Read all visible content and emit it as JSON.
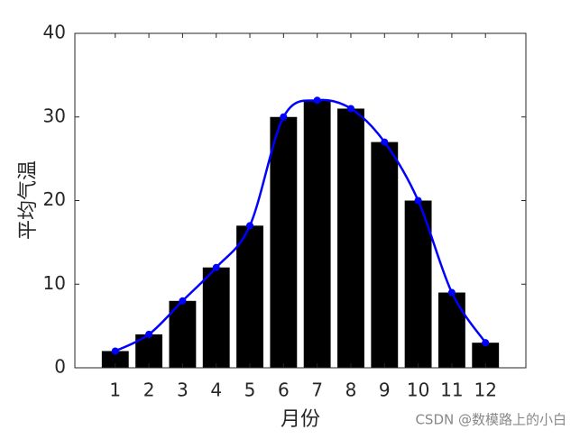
{
  "chart_data": {
    "type": "bar-line",
    "x": [
      1,
      2,
      3,
      4,
      5,
      6,
      7,
      8,
      9,
      10,
      11,
      12
    ],
    "series": [
      {
        "type": "bar",
        "color": "#000000",
        "values": [
          2,
          4,
          8,
          12,
          17,
          30,
          32,
          31,
          27,
          20,
          9,
          3
        ]
      },
      {
        "type": "line",
        "color": "#0000ff",
        "values": [
          2,
          4,
          8,
          12,
          17,
          30,
          32,
          31,
          27,
          20,
          9,
          3
        ]
      }
    ],
    "xlim": [
      -0.2,
      13.2
    ],
    "xticks": [
      1,
      2,
      3,
      4,
      5,
      6,
      7,
      8,
      9,
      10,
      11,
      12
    ],
    "ylim": [
      0,
      40
    ],
    "yticks": [
      0,
      10,
      20,
      30,
      40
    ],
    "x_label": "月份",
    "y_label": "平均气温",
    "watermark": "CSDN @数模路上的小白"
  }
}
